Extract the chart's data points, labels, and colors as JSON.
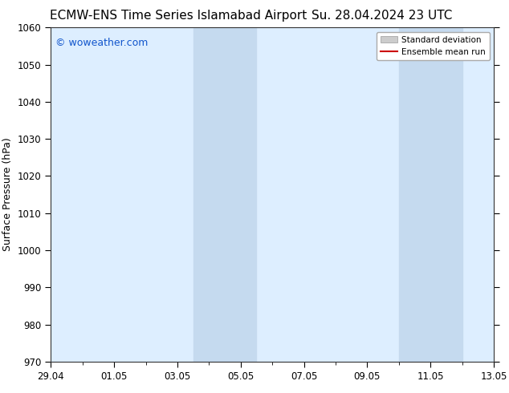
{
  "title_left": "ECMW-ENS Time Series Islamabad Airport",
  "title_right": "Su. 28.04.2024 23 UTC",
  "ylabel": "Surface Pressure (hPa)",
  "ylim": [
    970,
    1060
  ],
  "yticks": [
    970,
    980,
    990,
    1000,
    1010,
    1020,
    1030,
    1040,
    1050,
    1060
  ],
  "xtick_labels": [
    "29.04",
    "01.05",
    "03.05",
    "05.05",
    "07.05",
    "09.05",
    "11.05",
    "13.05"
  ],
  "xtick_positions": [
    0,
    2,
    4,
    6,
    8,
    10,
    12,
    14
  ],
  "shaded_bands": [
    {
      "x_start": 4.5,
      "x_end": 6.5
    },
    {
      "x_start": 11.0,
      "x_end": 13.0
    }
  ],
  "watermark": "© woweather.com",
  "watermark_color": "#1155cc",
  "bg_color": "#ffffff",
  "plot_bg_color": "#ddeeff",
  "shade_color": "#c5daef",
  "legend_std_color": "#cccccc",
  "legend_mean_color": "#cc0000",
  "title_fontsize": 11,
  "axis_fontsize": 9,
  "tick_fontsize": 8.5
}
